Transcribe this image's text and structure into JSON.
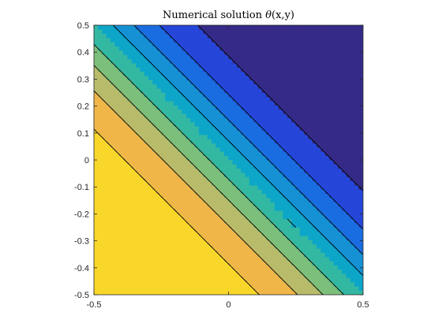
{
  "chart_data": {
    "type": "contourf",
    "title": "Numerical solution θ(x,y)",
    "title_prefix": "Numerical solution ",
    "title_symbol": "θ",
    "title_args": "(x,y)",
    "xlabel": "",
    "ylabel": "",
    "xlim": [
      -0.5,
      0.5
    ],
    "ylim": [
      -0.5,
      0.5
    ],
    "x_ticks": [
      -0.5,
      0,
      0.5
    ],
    "x_tick_labels": [
      "-0.5",
      "0",
      "0.5"
    ],
    "y_ticks": [
      -0.5,
      -0.4,
      -0.3,
      -0.2,
      -0.1,
      0,
      0.1,
      0.2,
      0.3,
      0.4,
      0.5
    ],
    "y_tick_labels": [
      "-0.5",
      "-0.4",
      "-0.3",
      "-0.2",
      "-0.1",
      "0",
      "0.1",
      "0.2",
      "0.3",
      "0.4",
      "0.5"
    ],
    "grid": false,
    "colormap": "parula",
    "field_range": [
      0,
      1
    ],
    "field_increasing_toward": "bottom-left",
    "contour_levels": [
      0.1,
      0.2,
      0.3,
      0.4,
      0.5,
      0.6,
      0.7,
      0.8,
      0.9
    ],
    "band_colors": [
      "#352a87",
      "#2546d8",
      "#1a6de0",
      "#1591d4",
      "#0da6c9",
      "#33b8a2",
      "#7cbf7b",
      "#b8bc6a",
      "#f0b648",
      "#f9d72a"
    ],
    "contour_line_color": "#000000"
  }
}
